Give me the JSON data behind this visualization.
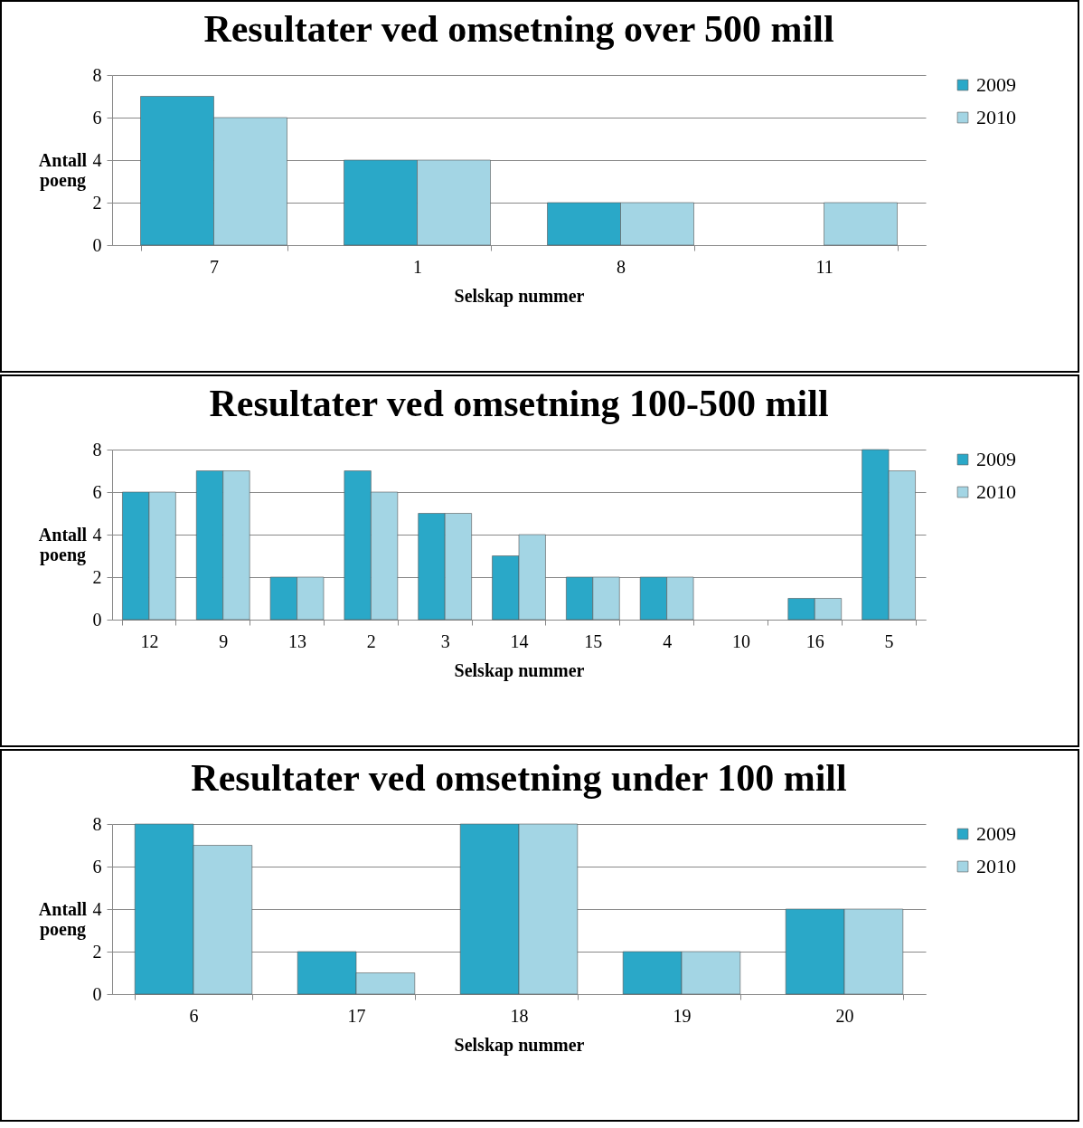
{
  "chart_data": [
    {
      "type": "bar",
      "title": "Resultater ved omsetning over 500 mill",
      "xlabel": "Selskap nummer",
      "ylabel": "Antall poeng",
      "categories": [
        "7",
        "1",
        "8",
        "11"
      ],
      "series": [
        {
          "name": "2009",
          "color": "#2aa8c8",
          "values": [
            7,
            4,
            2,
            null
          ]
        },
        {
          "name": "2010",
          "color": "#a3d5e4",
          "values": [
            6,
            4,
            2,
            2
          ]
        }
      ],
      "ylim": [
        0,
        8
      ],
      "yticks": [
        0,
        2,
        4,
        6,
        8
      ],
      "grid": "y",
      "legend": "right"
    },
    {
      "type": "bar",
      "title": "Resultater ved omsetning 100-500 mill",
      "xlabel": "Selskap nummer",
      "ylabel": "Antall poeng",
      "categories": [
        "12",
        "9",
        "13",
        "2",
        "3",
        "14",
        "15",
        "4",
        "10",
        "16",
        "5"
      ],
      "series": [
        {
          "name": "2009",
          "color": "#2aa8c8",
          "values": [
            6,
            7,
            2,
            7,
            5,
            3,
            2,
            2,
            null,
            1,
            8
          ]
        },
        {
          "name": "2010",
          "color": "#a3d5e4",
          "values": [
            6,
            7,
            2,
            6,
            5,
            4,
            2,
            2,
            null,
            1,
            7
          ]
        }
      ],
      "ylim": [
        0,
        8
      ],
      "yticks": [
        0,
        2,
        4,
        6,
        8
      ],
      "grid": "y",
      "legend": "right"
    },
    {
      "type": "bar",
      "title": "Resultater ved omsetning under 100 mill",
      "xlabel": "Selskap nummer",
      "ylabel": "Antall poeng",
      "categories": [
        "6",
        "17",
        "18",
        "19",
        "20"
      ],
      "series": [
        {
          "name": "2009",
          "color": "#2aa8c8",
          "values": [
            8,
            2,
            8,
            2,
            4
          ]
        },
        {
          "name": "2010",
          "color": "#a3d5e4",
          "values": [
            7,
            1,
            8,
            2,
            4
          ]
        }
      ],
      "ylim": [
        0,
        8
      ],
      "yticks": [
        0,
        2,
        4,
        6,
        8
      ],
      "grid": "y",
      "legend": "right"
    }
  ]
}
